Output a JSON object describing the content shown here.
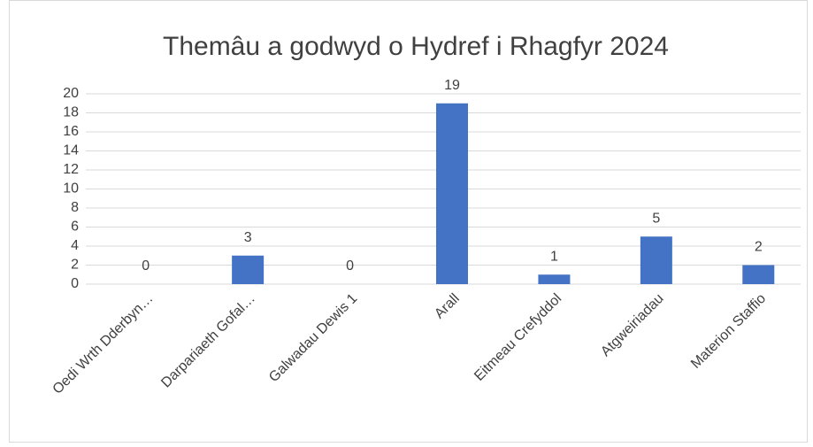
{
  "chart_data": {
    "type": "bar",
    "title": "Themâu a godwyd o Hydref i Rhagfyr 2024",
    "categories": [
      "Oedi Wrth Dderbyn…",
      "Darpariaeth Gofal…",
      "Galwadau Dewis 1",
      "Arall",
      "Eitmeau Crefyddol",
      "Atgweiriadau",
      "Materion Staffio"
    ],
    "values": [
      0,
      3,
      0,
      19,
      1,
      5,
      2
    ],
    "color": "#4472c4",
    "ylim": [
      0,
      20
    ],
    "yticks": [
      0,
      2,
      4,
      6,
      8,
      10,
      12,
      14,
      16,
      18,
      20
    ],
    "grid": true,
    "data_labels": true
  }
}
